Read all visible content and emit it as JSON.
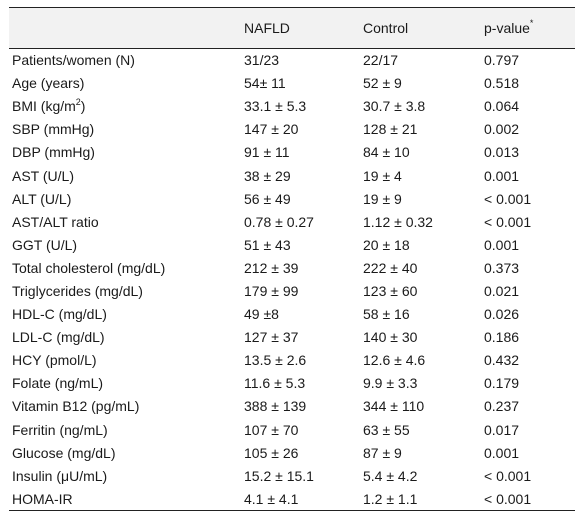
{
  "table": {
    "headers": [
      "",
      "NAFLD",
      "Control",
      "p-value"
    ],
    "header_footnote_marker": "*",
    "rows": [
      {
        "label": "Patients/women (N)",
        "nafld": "31/23",
        "control": "22/17",
        "p": "0.797"
      },
      {
        "label": "Age (years)",
        "nafld": "54± 11",
        "control": "52 ± 9",
        "p": "0.518"
      },
      {
        "label": "BMI (kg/m",
        "label_sup": "2",
        "label_after": ")",
        "nafld": "33.1 ± 5.3",
        "control": "30.7 ± 3.8",
        "p": "0.064"
      },
      {
        "label": "SBP (mmHg)",
        "nafld": "147 ± 20",
        "control": "128 ± 21",
        "p": "0.002"
      },
      {
        "label": "DBP (mmHg)",
        "nafld": "91 ± 11",
        "control": "84 ± 10",
        "p": "0.013"
      },
      {
        "label": "AST (U/L)",
        "nafld": "38 ± 29",
        "control": "19 ± 4",
        "p": "0.001"
      },
      {
        "label": "ALT (U/L)",
        "nafld": "56 ± 49",
        "control": "19 ± 9",
        "p": "< 0.001"
      },
      {
        "label": "AST/ALT ratio",
        "nafld": "0.78 ± 0.27",
        "control": "1.12 ± 0.32",
        "p": "< 0.001"
      },
      {
        "label": "GGT (U/L)",
        "nafld": "51 ± 43",
        "control": "20 ± 18",
        "p": "0.001"
      },
      {
        "label": "Total cholesterol (mg/dL)",
        "nafld": "212 ± 39",
        "control": "222 ± 40",
        "p": "0.373"
      },
      {
        "label": "Triglycerides (mg/dL)",
        "nafld": "179 ± 99",
        "control": "123 ± 60",
        "p": "0.021"
      },
      {
        "label": "HDL-C (mg/dL)",
        "nafld": "49 ±8",
        "control": "58 ± 16",
        "p": "0.026"
      },
      {
        "label": "LDL-C (mg/dL)",
        "nafld": "127 ± 37",
        "control": "140 ± 30",
        "p": "0.186"
      },
      {
        "label": "HCY (pmol/L)",
        "nafld": "13.5 ± 2.6",
        "control": "12.6 ± 4.6",
        "p": "0.432"
      },
      {
        "label": "Folate (ng/mL)",
        "nafld": "11.6 ± 5.3",
        "control": "9.9 ± 3.3",
        "p": "0.179"
      },
      {
        "label": "Vitamin B12 (pg/mL)",
        "nafld": "388 ± 139",
        "control": "344 ± 110",
        "p": "0.237"
      },
      {
        "label": "Ferritin (ng/mL)",
        "nafld": "107 ± 70",
        "control": "63 ± 55",
        "p": "0.017"
      },
      {
        "label": "Glucose (mg/dL)",
        "nafld": "105 ± 26",
        "control": "87 ± 9",
        "p": "0.001"
      },
      {
        "label": "Insulin (μU/mL)",
        "nafld": "15.2 ± 15.1",
        "control": "5.4 ± 4.2",
        "p": "< 0.001"
      },
      {
        "label": "HOMA-IR",
        "nafld": "4.1 ± 4.1",
        "control": "1.2 ± 1.1",
        "p": "< 0.001"
      }
    ]
  }
}
